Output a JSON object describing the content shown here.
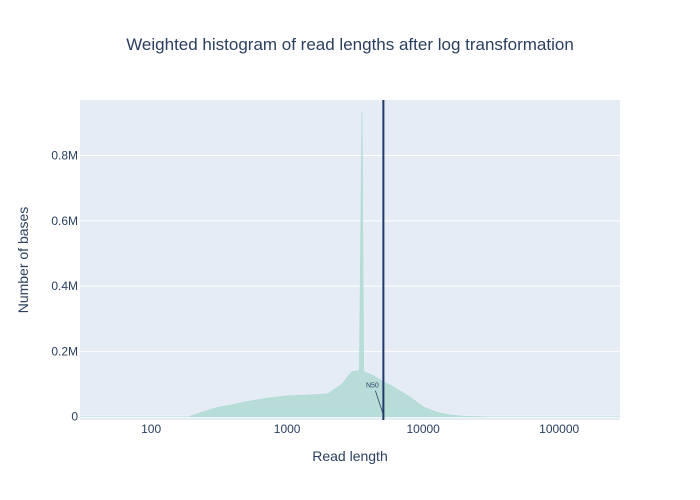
{
  "chart_data": {
    "type": "area",
    "title": "Weighted histogram of read lengths after log transformation",
    "xlabel": "Read length",
    "ylabel": "Number of bases",
    "x_scale": "log",
    "xlim": [
      30,
      280000
    ],
    "ylim": [
      -10000,
      970000
    ],
    "x_ticks": [
      100,
      1000,
      10000,
      100000
    ],
    "x_tick_labels": [
      "100",
      "1000",
      "10000",
      "100000"
    ],
    "y_ticks": [
      0,
      200000,
      400000,
      600000,
      800000
    ],
    "y_tick_labels": [
      "0",
      "0.2M",
      "0.4M",
      "0.6M",
      "0.8M"
    ],
    "grid": true,
    "series": [
      {
        "color": "#b2dbd6",
        "x": [
          30,
          190,
          230,
          300,
          400,
          500,
          700,
          1000,
          1500,
          2000,
          2500,
          3000,
          3400,
          3550,
          3650,
          3800,
          4200,
          5000,
          6000,
          8000,
          10000,
          13000,
          16000,
          20000,
          25000,
          30000,
          280000
        ],
        "y": [
          0,
          0,
          12000,
          27000,
          37000,
          46000,
          56000,
          64000,
          67000,
          70000,
          98000,
          138000,
          141000,
          932000,
          138000,
          135000,
          128000,
          110000,
          92000,
          60000,
          30000,
          12000,
          5000,
          1500,
          500,
          0,
          0
        ]
      }
    ],
    "vertical_line": {
      "x": 5100,
      "color": "#1f3a68"
    },
    "annotations": [
      {
        "text": "N50",
        "x": 5100,
        "y": 0
      }
    ]
  }
}
